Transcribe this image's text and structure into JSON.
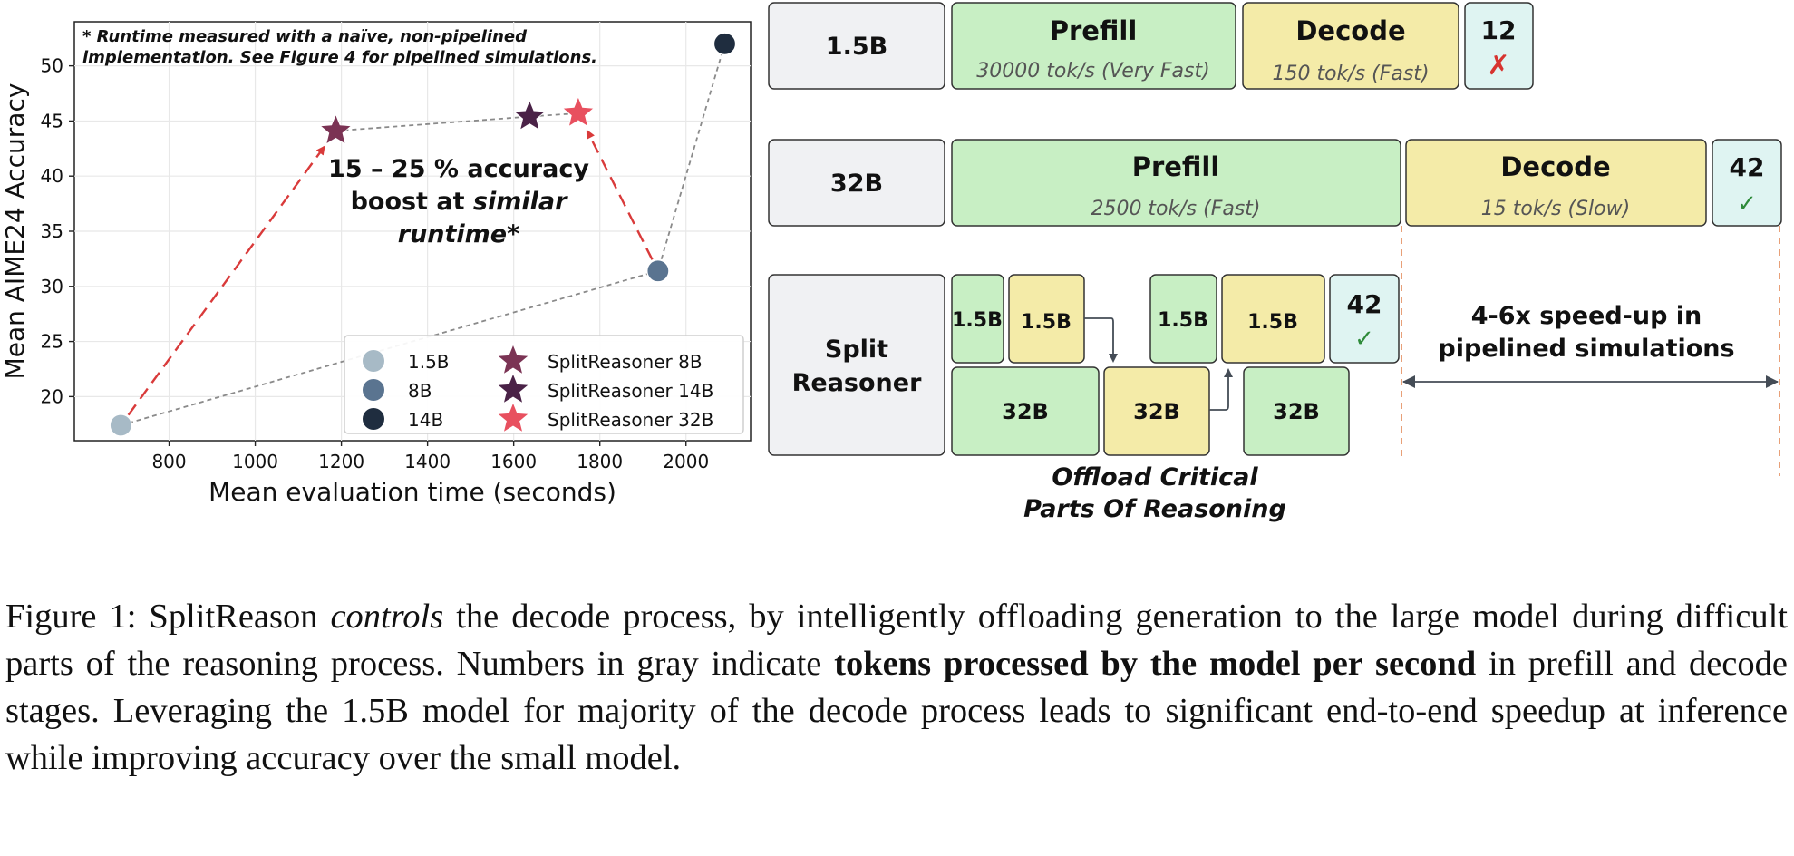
{
  "chart_data": {
    "type": "scatter",
    "title": "",
    "xlabel": "Mean evaluation time (seconds)",
    "ylabel": "Mean AIME24 Accuracy",
    "xlim": [
      580,
      2150
    ],
    "ylim": [
      16,
      54
    ],
    "xticks": [
      800,
      1000,
      1200,
      1400,
      1600,
      1800,
      2000
    ],
    "yticks": [
      20,
      25,
      30,
      35,
      40,
      45,
      50
    ],
    "grid": true,
    "legend_position": "bottom-right",
    "note_line1": "* Runtime measured with a naïve, non-pipelined",
    "note_line2": "implementation. See Figure 4 for pipelined simulations.",
    "annotation": {
      "line1": "15 – 25 % accuracy",
      "line2_a": "boost at ",
      "line2_b": "similar",
      "line3": "runtime*"
    },
    "series": [
      {
        "name": "1.5B",
        "marker": "circle",
        "color": "#a7bac6",
        "points": [
          {
            "x": 688,
            "y": 17.4
          }
        ]
      },
      {
        "name": "8B",
        "marker": "circle",
        "color": "#5a7490",
        "points": [
          {
            "x": 1935,
            "y": 31.4
          }
        ]
      },
      {
        "name": "14B",
        "marker": "circle",
        "color": "#1f2d3f",
        "points": [
          {
            "x": 2090,
            "y": 52.0
          }
        ]
      },
      {
        "name": "SplitReasoner 8B",
        "marker": "star",
        "color": "#7b3354",
        "points": [
          {
            "x": 1187,
            "y": 44.1
          }
        ]
      },
      {
        "name": "SplitReasoner 14B",
        "marker": "star",
        "color": "#4a2247",
        "points": [
          {
            "x": 1637,
            "y": 45.4
          }
        ]
      },
      {
        "name": "SplitReasoner 32B",
        "marker": "star",
        "color": "#e8505f",
        "points": [
          {
            "x": 1750,
            "y": 45.7
          }
        ]
      }
    ],
    "gray_path": [
      {
        "x": 688,
        "y": 17.4
      },
      {
        "x": 1935,
        "y": 31.4
      },
      {
        "x": 2090,
        "y": 52.0
      }
    ],
    "gray_star_path": [
      {
        "x": 1187,
        "y": 44.1
      },
      {
        "x": 1637,
        "y": 45.4
      },
      {
        "x": 1750,
        "y": 45.7
      }
    ],
    "red_arrows": [
      {
        "from": {
          "x": 688,
          "y": 17.4
        },
        "to": {
          "x": 1187,
          "y": 44.1
        }
      },
      {
        "from": {
          "x": 1935,
          "y": 31.4
        },
        "to": {
          "x": 1750,
          "y": 45.7
        }
      }
    ]
  },
  "diagram": {
    "row1": {
      "model": "1.5B",
      "prefill_title": "Prefill",
      "prefill_rate": "30000 tok/s (Very Fast)",
      "decode_title": "Decode",
      "decode_rate": "150 tok/s (Fast)",
      "score": "12",
      "mark": "✗"
    },
    "row2": {
      "model": "32B",
      "prefill_title": "Prefill",
      "prefill_rate": "2500 tok/s (Fast)",
      "decode_title": "Decode",
      "decode_rate": "15 tok/s (Slow)",
      "score": "42",
      "mark": "✓"
    },
    "row3": {
      "model_line1": "Split",
      "model_line2": "Reasoner",
      "small1": "1.5B",
      "small2": "1.5B",
      "small3": "1.5B",
      "small4": "1.5B",
      "large1": "32B",
      "large2": "32B",
      "large3": "32B",
      "score": "42",
      "mark": "✓",
      "offload_line1": "Offload Critical",
      "offload_line2": "Parts Of Reasoning"
    },
    "speedup_line1": "4-6x speed-up in",
    "speedup_line2": "pipelined simulations",
    "colors": {
      "prefill": "#c8efc4",
      "decode": "#f4eba8",
      "score": "#dff4f2",
      "model": "#f0f1f3",
      "cross": "#d7332f",
      "check": "#2e8b3a",
      "dashed": "#e6956a"
    }
  },
  "caption": {
    "p1": "Figure 1: SplitReason ",
    "p1_em": "controls",
    "p2": " the decode process, by intelligently offloading generation to the large model during difficult parts of the reasoning process. Numbers in gray indicate ",
    "p2_bold": "tokens processed by the model per second",
    "p3": " in prefill and decode stages. Leveraging the 1.5B model for majority of the decode process leads to significant end-to-end speedup at inference while improving accuracy over the small model."
  }
}
